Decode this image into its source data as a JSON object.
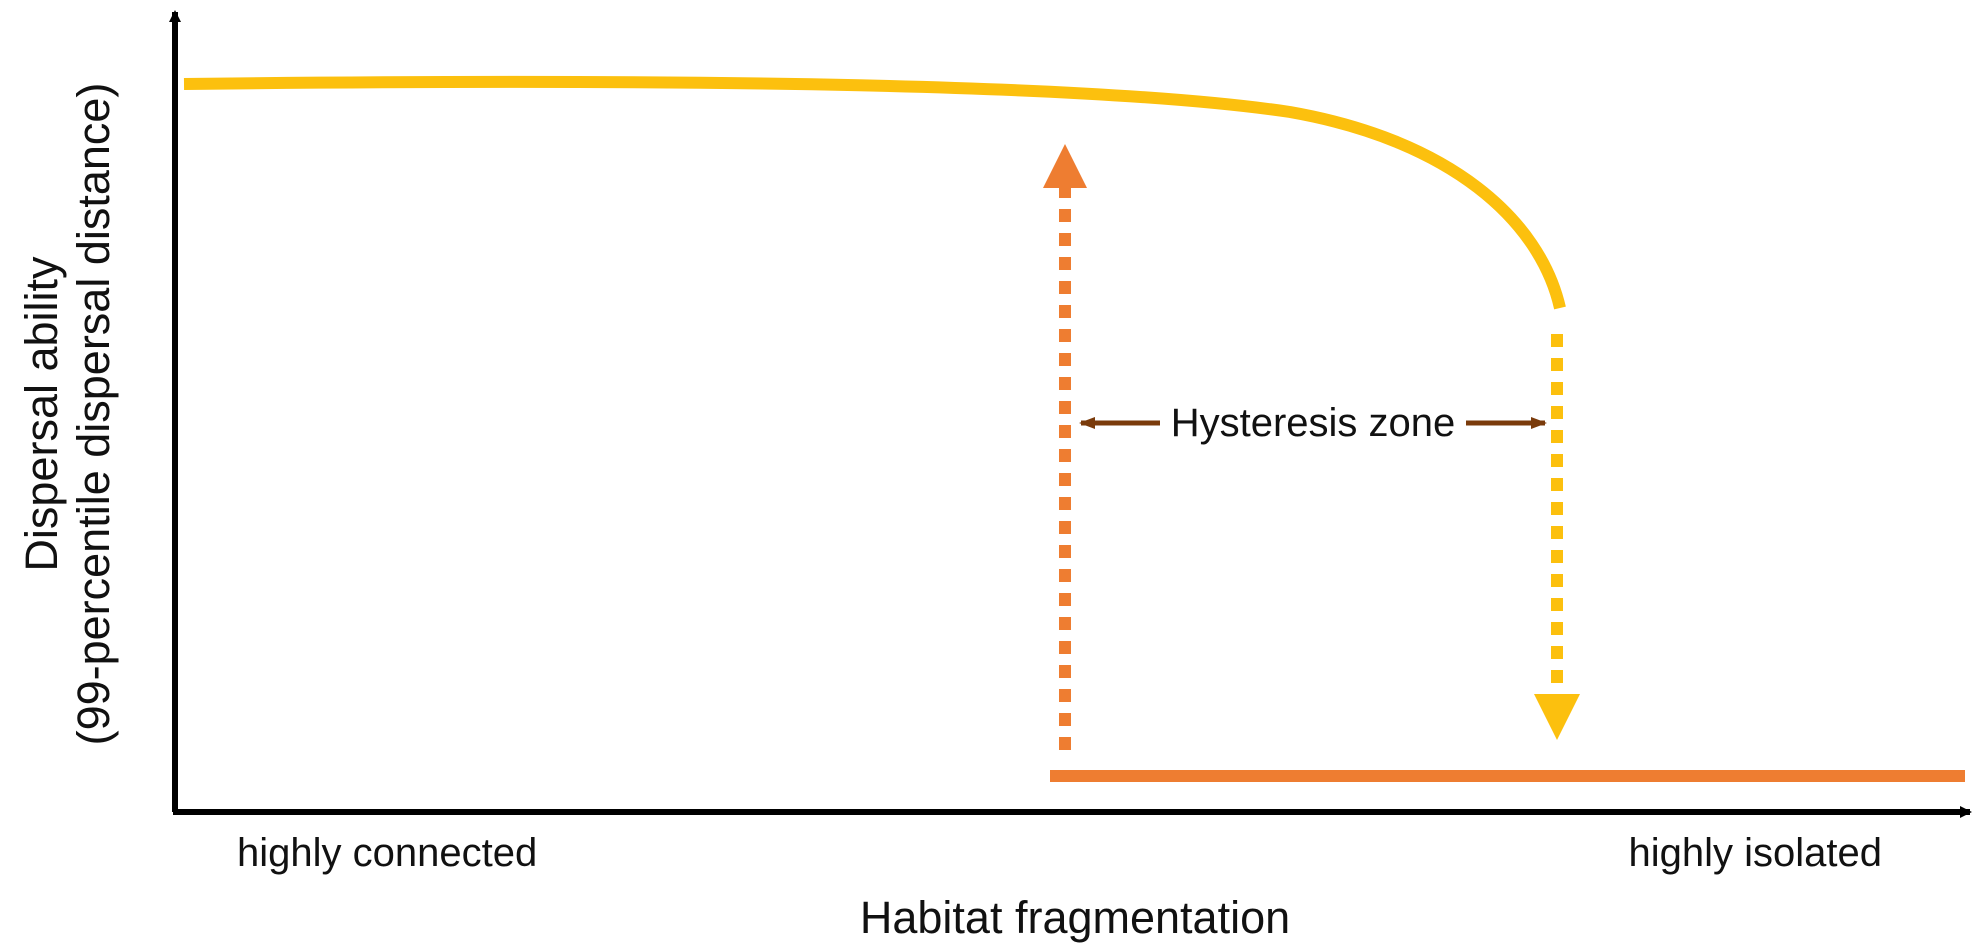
{
  "labels": {
    "y_axis_line1": "Dispersal ability",
    "y_axis_line2": "(99-percentile dispersal distance)",
    "x_axis": "Habitat fragmentation",
    "x_left": "highly connected",
    "x_right": "highly isolated",
    "hysteresis": "Hysteresis zone"
  },
  "colors": {
    "upper_branch": "#FCC00E",
    "lower_branch": "#EE7D31",
    "hysteresis_arrow": "#7A3B0B",
    "axes": "#000000"
  }
}
